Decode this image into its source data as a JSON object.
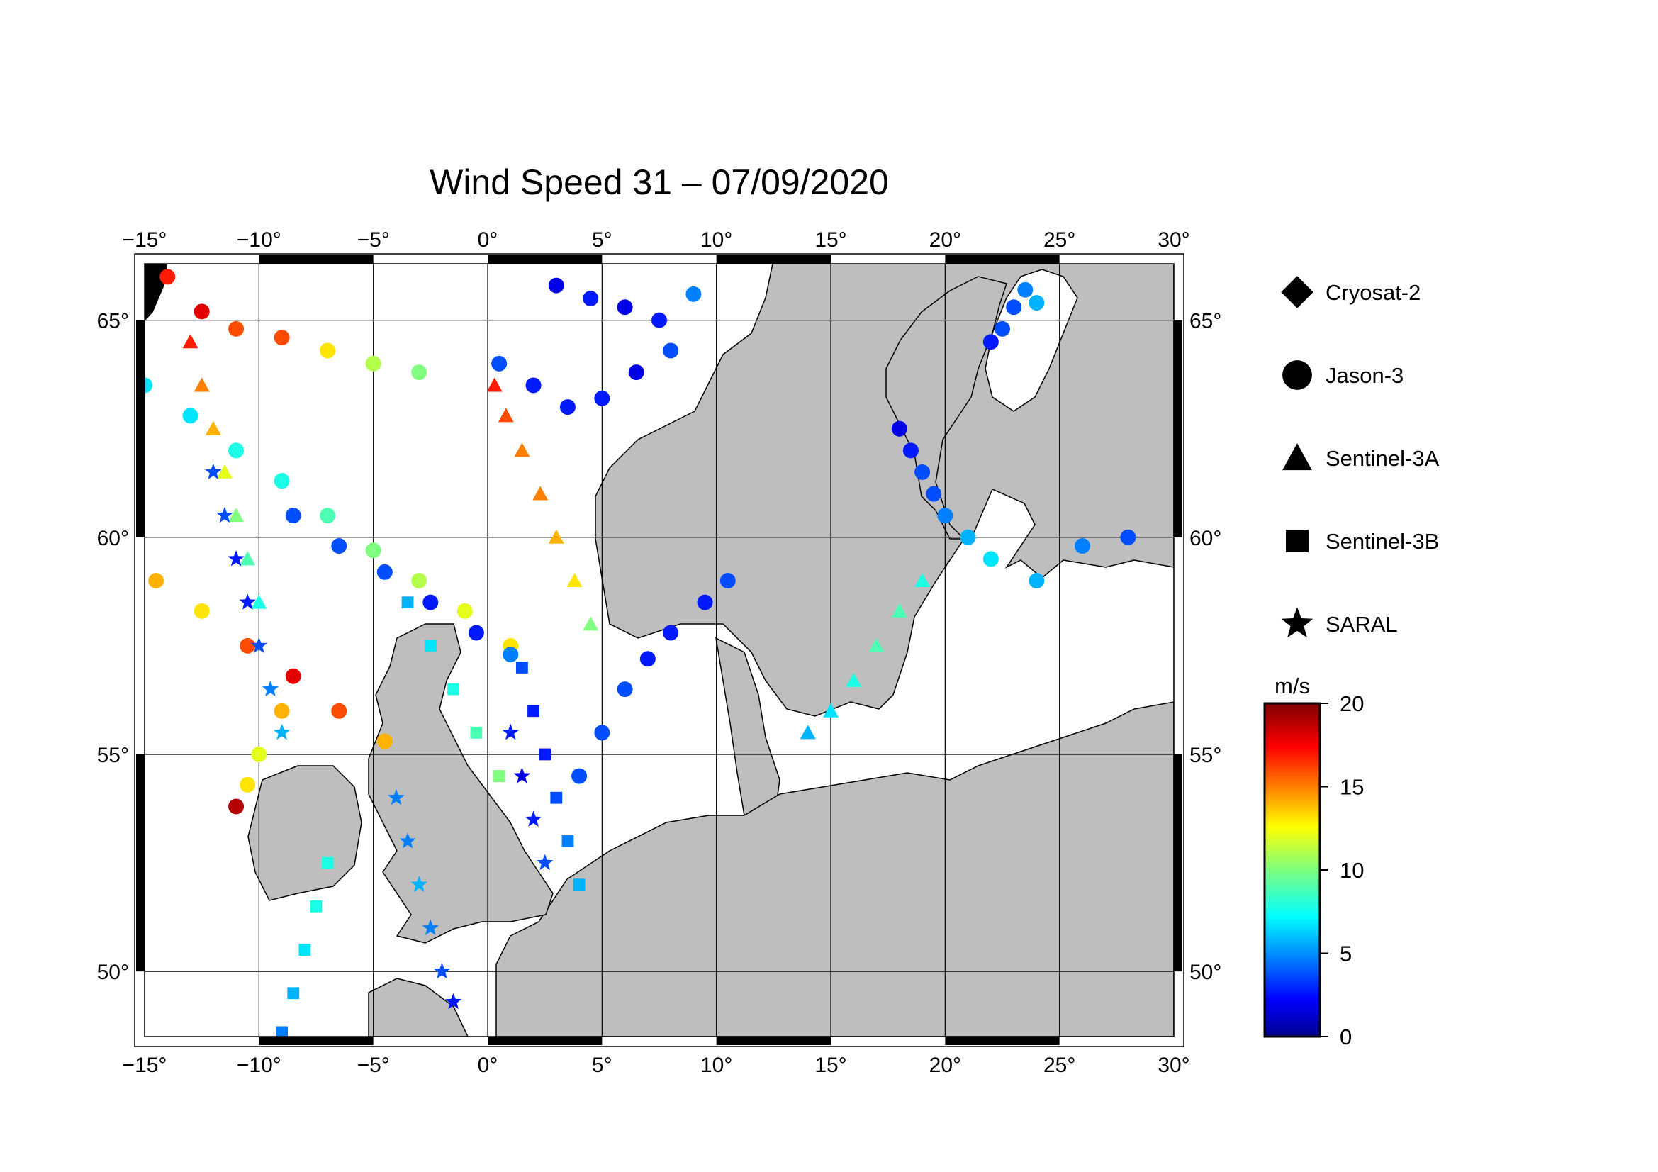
{
  "title": "Wind Speed 31 – 07/09/2020",
  "map": {
    "lon_range": [
      -15,
      30
    ],
    "lat_range": [
      48.5,
      66.3
    ],
    "lon_ticks": [
      -15,
      -10,
      -5,
      0,
      5,
      10,
      15,
      20,
      25,
      30
    ],
    "lat_ticks": [
      50,
      55,
      60,
      65
    ],
    "lon_tick_labels": [
      "−15°",
      "−10°",
      "−5°",
      "0°",
      "5°",
      "10°",
      "15°",
      "20°",
      "25°",
      "30°"
    ],
    "lat_tick_labels": [
      "50°",
      "55°",
      "60°",
      "65°"
    ],
    "land_color": "#bebebe",
    "sea_color": "#ffffff",
    "grid": true
  },
  "legend": {
    "items": [
      {
        "label": "Cryosat-2",
        "marker": "diamond"
      },
      {
        "label": "Jason-3",
        "marker": "circle"
      },
      {
        "label": "Sentinel-3A",
        "marker": "triangle"
      },
      {
        "label": "Sentinel-3B",
        "marker": "square"
      },
      {
        "label": "SARAL",
        "marker": "star"
      }
    ]
  },
  "colorbar": {
    "unit": "m/s",
    "min": 0,
    "max": 20,
    "ticks": [
      0,
      5,
      10,
      15,
      20
    ],
    "tick_labels": [
      "0",
      "5",
      "10",
      "15",
      "20"
    ],
    "colormap": "jet"
  },
  "chart_data": {
    "type": "scatter",
    "title": "Wind Speed 31 – 07/09/2020",
    "xlim": [
      -15,
      30
    ],
    "ylim": [
      48.5,
      66.3
    ],
    "color_variable": "wind speed (m/s)",
    "tracks": [
      {
        "satellite": "Jason-3",
        "marker": "circle",
        "points": [
          [
            -14.0,
            66.0,
            17
          ],
          [
            -12.5,
            65.2,
            18
          ],
          [
            -11.0,
            64.8,
            16
          ],
          [
            -9.0,
            64.6,
            16
          ],
          [
            -7.0,
            64.3,
            13
          ],
          [
            -5.0,
            64.0,
            11
          ],
          [
            -3.0,
            63.8,
            10
          ]
        ]
      },
      {
        "satellite": "Jason-3",
        "marker": "circle",
        "points": [
          [
            -15.0,
            63.5,
            7
          ],
          [
            -13.0,
            62.8,
            7
          ],
          [
            -11.0,
            62.0,
            8
          ],
          [
            -9.0,
            61.3,
            8
          ],
          [
            -7.0,
            60.5,
            9
          ],
          [
            -5.0,
            59.7,
            10
          ],
          [
            -3.0,
            59.0,
            11
          ],
          [
            -1.0,
            58.3,
            12
          ],
          [
            1.0,
            57.5,
            13
          ]
        ]
      },
      {
        "satellite": "Jason-3",
        "marker": "circle",
        "points": [
          [
            -14.5,
            59.0,
            14
          ],
          [
            -12.5,
            58.3,
            13
          ],
          [
            -10.5,
            57.5,
            16
          ],
          [
            -8.5,
            56.8,
            18
          ],
          [
            -6.5,
            56.0,
            16
          ],
          [
            -4.5,
            55.3,
            14
          ]
        ]
      },
      {
        "satellite": "Jason-3",
        "marker": "circle",
        "points": [
          [
            -8.5,
            60.5,
            4
          ],
          [
            -6.5,
            59.8,
            4
          ],
          [
            -4.5,
            59.2,
            4
          ],
          [
            -2.5,
            58.5,
            3
          ],
          [
            -0.5,
            57.8,
            3
          ],
          [
            1.0,
            57.3,
            5
          ]
        ]
      },
      {
        "satellite": "Jason-3",
        "marker": "circle",
        "points": [
          [
            0.5,
            64.0,
            4
          ],
          [
            2.0,
            63.5,
            3
          ],
          [
            3.5,
            63.0,
            3
          ],
          [
            5.0,
            63.2,
            3
          ],
          [
            6.5,
            63.8,
            2
          ],
          [
            8.0,
            64.3,
            4
          ]
        ]
      },
      {
        "satellite": "Jason-3",
        "marker": "circle",
        "points": [
          [
            3.0,
            65.8,
            2
          ],
          [
            4.5,
            65.5,
            3
          ],
          [
            6.0,
            65.3,
            2
          ],
          [
            7.5,
            65.0,
            3
          ],
          [
            9.0,
            65.6,
            5
          ]
        ]
      },
      {
        "satellite": "Jason-3",
        "marker": "circle",
        "points": [
          [
            4.0,
            54.5,
            4
          ],
          [
            5.0,
            55.5,
            4
          ],
          [
            6.0,
            56.5,
            4
          ],
          [
            7.0,
            57.2,
            3
          ],
          [
            8.0,
            57.8,
            3
          ],
          [
            9.5,
            58.5,
            3
          ],
          [
            10.5,
            59.0,
            4
          ]
        ]
      },
      {
        "satellite": "Jason-3",
        "marker": "circle",
        "points": [
          [
            18.0,
            62.5,
            2
          ],
          [
            18.5,
            62.0,
            3
          ],
          [
            19.0,
            61.5,
            4
          ],
          [
            19.5,
            61.0,
            4
          ],
          [
            20.0,
            60.5,
            5
          ],
          [
            21.0,
            60.0,
            6
          ],
          [
            22.0,
            59.5,
            7
          ],
          [
            24.0,
            59.0,
            6
          ],
          [
            26.0,
            59.8,
            5
          ],
          [
            28.0,
            60.0,
            4
          ]
        ]
      },
      {
        "satellite": "Jason-3",
        "marker": "circle",
        "points": [
          [
            22.0,
            64.5,
            3
          ],
          [
            22.5,
            64.8,
            4
          ],
          [
            23.0,
            65.3,
            4
          ],
          [
            23.5,
            65.7,
            5
          ],
          [
            24.0,
            65.4,
            6
          ]
        ]
      },
      {
        "satellite": "Jason-3",
        "marker": "circle",
        "points": [
          [
            -11.0,
            53.8,
            19
          ],
          [
            -10.5,
            54.3,
            13
          ],
          [
            -10.0,
            55.0,
            12
          ],
          [
            -9.0,
            56.0,
            14
          ]
        ]
      },
      {
        "satellite": "Sentinel-3A",
        "marker": "triangle",
        "points": [
          [
            0.3,
            63.5,
            17
          ],
          [
            0.8,
            62.8,
            16
          ],
          [
            1.5,
            62.0,
            15
          ],
          [
            2.3,
            61.0,
            15
          ],
          [
            3.0,
            60.0,
            14
          ],
          [
            3.8,
            59.0,
            13
          ],
          [
            4.5,
            58.0,
            10
          ]
        ]
      },
      {
        "satellite": "Sentinel-3A",
        "marker": "triangle",
        "points": [
          [
            -13.0,
            64.5,
            17
          ],
          [
            -12.5,
            63.5,
            15
          ],
          [
            -12.0,
            62.5,
            14
          ],
          [
            -11.5,
            61.5,
            12
          ],
          [
            -11.0,
            60.5,
            10
          ],
          [
            -10.5,
            59.5,
            9
          ],
          [
            -10.0,
            58.5,
            8
          ]
        ]
      },
      {
        "satellite": "Sentinel-3A",
        "marker": "triangle",
        "points": [
          [
            14.0,
            55.5,
            6
          ],
          [
            15.0,
            56.0,
            7
          ],
          [
            16.0,
            56.7,
            8
          ],
          [
            17.0,
            57.5,
            9
          ],
          [
            18.0,
            58.3,
            9
          ],
          [
            19.0,
            59.0,
            8
          ]
        ]
      },
      {
        "satellite": "Sentinel-3B",
        "marker": "square",
        "points": [
          [
            1.5,
            57.0,
            4
          ],
          [
            2.0,
            56.0,
            3
          ],
          [
            2.5,
            55.0,
            3
          ],
          [
            3.0,
            54.0,
            4
          ],
          [
            3.5,
            53.0,
            5
          ],
          [
            4.0,
            52.0,
            6
          ]
        ]
      },
      {
        "satellite": "Sentinel-3B",
        "marker": "square",
        "points": [
          [
            -3.5,
            58.5,
            6
          ],
          [
            -2.5,
            57.5,
            7
          ],
          [
            -1.5,
            56.5,
            8
          ],
          [
            -0.5,
            55.5,
            9
          ],
          [
            0.5,
            54.5,
            10
          ]
        ]
      },
      {
        "satellite": "Sentinel-3B",
        "marker": "square",
        "points": [
          [
            -9.0,
            48.6,
            5
          ],
          [
            -8.5,
            49.5,
            6
          ],
          [
            -8.0,
            50.5,
            7
          ],
          [
            -7.5,
            51.5,
            8
          ],
          [
            -7.0,
            52.5,
            8
          ]
        ]
      },
      {
        "satellite": "SARAL",
        "marker": "star",
        "points": [
          [
            -12.0,
            61.5,
            4
          ],
          [
            -11.5,
            60.5,
            4
          ],
          [
            -11.0,
            59.5,
            3
          ],
          [
            -10.5,
            58.5,
            3
          ],
          [
            -10.0,
            57.5,
            4
          ],
          [
            -9.5,
            56.5,
            5
          ],
          [
            -9.0,
            55.5,
            6
          ]
        ]
      },
      {
        "satellite": "SARAL",
        "marker": "star",
        "points": [
          [
            -4.0,
            54.0,
            5
          ],
          [
            -3.5,
            53.0,
            5
          ],
          [
            -3.0,
            52.0,
            6
          ],
          [
            -2.5,
            51.0,
            5
          ],
          [
            -2.0,
            50.0,
            4
          ],
          [
            -1.5,
            49.3,
            3
          ]
        ]
      },
      {
        "satellite": "SARAL",
        "marker": "star",
        "points": [
          [
            1.0,
            55.5,
            3
          ],
          [
            1.5,
            54.5,
            2
          ],
          [
            2.0,
            53.5,
            3
          ],
          [
            2.5,
            52.5,
            4
          ]
        ]
      }
    ]
  }
}
